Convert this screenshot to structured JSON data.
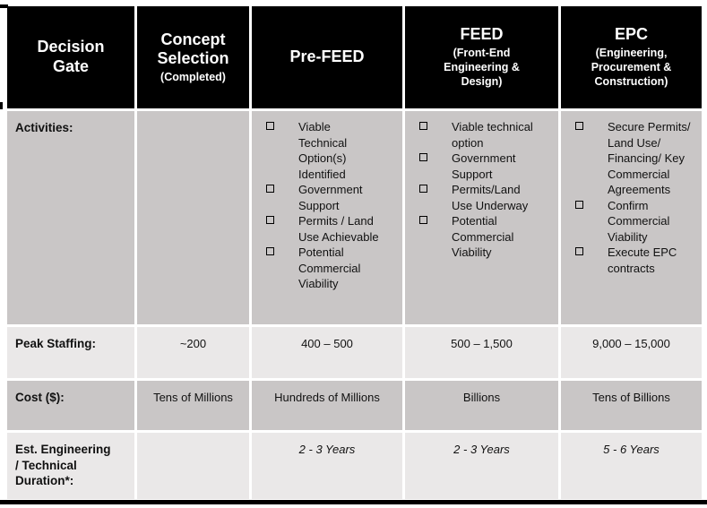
{
  "colors": {
    "header-bg": "#000000",
    "header-text": "#ffffff",
    "row-gray": "#c9c6c6",
    "row-light": "#eae8e8",
    "divider": "#ffffff",
    "text": "#111111"
  },
  "table": {
    "columns": [
      {
        "id": "decision-gate",
        "title": "Decision Gate",
        "subtitle": ""
      },
      {
        "id": "concept-selection",
        "title": "Concept Selection",
        "subtitle": "(Completed)"
      },
      {
        "id": "pre-feed",
        "title": "Pre-FEED",
        "subtitle": ""
      },
      {
        "id": "feed",
        "title": "FEED",
        "subtitle": "(Front-End Engineering & Design)"
      },
      {
        "id": "epc",
        "title": "EPC",
        "subtitle": "(Engineering, Procurement & Construction)"
      }
    ],
    "rows": {
      "activities": {
        "label": "Activities:",
        "bullet_icon": "checkbox-square",
        "concept_selection": [],
        "pre_feed": [
          "Viable Technical Option(s) Identified",
          "Government Support",
          "Permits / Land Use Achievable",
          "Potential Commercial Viability"
        ],
        "feed": [
          "Viable technical option",
          "Government Support",
          "Permits/Land Use Underway",
          "Potential Commercial Viability"
        ],
        "epc": [
          "Secure Permits/ Land Use/ Financing/ Key Commercial Agreements",
          "Confirm Commercial Viability",
          "Execute EPC contracts"
        ]
      },
      "peak_staffing": {
        "label": "Peak Staffing:",
        "concept_selection": "~200",
        "pre_feed": "400 – 500",
        "feed": "500 – 1,500",
        "epc": "9,000 – 15,000"
      },
      "cost": {
        "label": "Cost ($):",
        "concept_selection": "Tens of Millions",
        "pre_feed": "Hundreds of Millions",
        "feed": "Billions",
        "epc": "Tens of Billions"
      },
      "duration": {
        "label": "Est. Engineering / Technical Duration*:",
        "concept_selection": "",
        "pre_feed": "2 - 3 Years",
        "feed": "2 - 3 Years",
        "epc": "5 - 6 Years"
      }
    }
  }
}
